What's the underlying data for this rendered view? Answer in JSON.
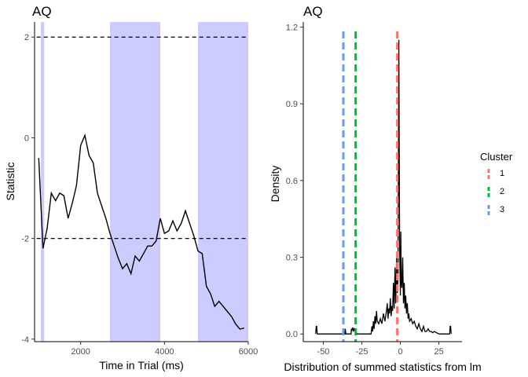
{
  "chart_data": [
    {
      "type": "line",
      "title": "AQ",
      "xlabel": "Time in Trial (ms)",
      "ylabel": "Statistic",
      "xlim": [
        900,
        6000
      ],
      "ylim": [
        -4.05,
        2.3
      ],
      "xticks": [
        2000,
        4000,
        6000
      ],
      "yticks": [
        2,
        0,
        -2,
        -4
      ],
      "grid": false,
      "threshold_lines": [
        2,
        -2
      ],
      "shaded_regions": [
        [
          1050,
          1130
        ],
        [
          2700,
          3900
        ],
        [
          4800,
          6000
        ]
      ],
      "colors": {
        "line": "#000000",
        "shade": "#ccccff",
        "threshold": "#000000"
      },
      "x": [
        1000,
        1100,
        1200,
        1300,
        1400,
        1500,
        1600,
        1700,
        1800,
        1900,
        2000,
        2100,
        2200,
        2300,
        2400,
        2500,
        2600,
        2700,
        2800,
        2900,
        3000,
        3100,
        3200,
        3300,
        3400,
        3500,
        3600,
        3700,
        3800,
        3900,
        4000,
        4100,
        4200,
        4300,
        4400,
        4500,
        4600,
        4700,
        4800,
        4900,
        5000,
        5100,
        5200,
        5300,
        5400,
        5500,
        5600,
        5700,
        5800,
        5900
      ],
      "y": [
        -0.4,
        -2.2,
        -1.8,
        -1.1,
        -1.25,
        -1.1,
        -1.15,
        -1.6,
        -1.3,
        -0.95,
        -0.15,
        0.05,
        -0.35,
        -0.5,
        -1.1,
        -1.35,
        -1.6,
        -1.9,
        -2.15,
        -2.4,
        -2.6,
        -2.5,
        -2.7,
        -2.35,
        -2.45,
        -2.3,
        -2.15,
        -2.15,
        -2.05,
        -1.6,
        -1.9,
        -1.85,
        -1.65,
        -1.85,
        -1.7,
        -1.45,
        -1.7,
        -1.95,
        -2.25,
        -2.3,
        -2.95,
        -3.1,
        -3.35,
        -3.25,
        -3.35,
        -3.45,
        -3.55,
        -3.7,
        -3.8,
        -3.78
      ]
    },
    {
      "type": "density",
      "title": "AQ",
      "xlabel": "Distribution of summed statistics from lm",
      "ylabel": "Density",
      "xlim": [
        -63,
        40
      ],
      "ylim": [
        -0.03,
        1.22
      ],
      "xticks": [
        -50,
        -25,
        0,
        25
      ],
      "yticks": [
        0.0,
        0.3,
        0.6,
        0.9,
        1.2
      ],
      "ytick_labels": [
        "0.0",
        "0.3",
        "0.6",
        "0.9",
        "1.2"
      ],
      "grid": false,
      "density": {
        "x": [
          -55,
          -54.6,
          -54.3,
          -54,
          -50,
          -40,
          -36,
          -35.7,
          -35.4,
          -32,
          -31.8,
          -31.5,
          -31,
          -30.5,
          -30,
          -29.7,
          -28,
          -25,
          -22,
          -20,
          -19,
          -18.5,
          -18,
          -17.5,
          -17,
          -16.5,
          -16,
          -15.5,
          -15,
          -14,
          -13,
          -12,
          -11,
          -10,
          -9,
          -8.5,
          -8,
          -7.5,
          -7,
          -6.5,
          -6,
          -5.5,
          -5,
          -4.5,
          -4,
          -3.5,
          -3,
          -2.5,
          -2,
          -1.5,
          -1,
          -0.5,
          0,
          0.3,
          0.6,
          1,
          1.5,
          2,
          2.5,
          3,
          3.5,
          4,
          4.5,
          5,
          5.5,
          6,
          7,
          8,
          9,
          10,
          11,
          12,
          13,
          14,
          15,
          16,
          17,
          18,
          19,
          20,
          21,
          22,
          25,
          30,
          32,
          32.3,
          32.6,
          33
        ],
        "y": [
          0,
          0.03,
          0.03,
          0,
          0,
          0,
          0,
          0.02,
          0,
          0,
          0.02,
          0.015,
          0.025,
          0.01,
          0.02,
          0.015,
          0,
          0,
          0,
          0,
          0,
          0.03,
          0.01,
          0.05,
          0.02,
          0.07,
          0.04,
          0.09,
          0.05,
          0.04,
          0.06,
          0.04,
          0.08,
          0.05,
          0.09,
          0.12,
          0.06,
          0.1,
          0.08,
          0.14,
          0.07,
          0.11,
          0.09,
          0.2,
          0.1,
          0.26,
          0.12,
          0.3,
          0.16,
          0.22,
          1.15,
          0.35,
          0.15,
          0.4,
          0.2,
          0.18,
          0.3,
          0.12,
          0.2,
          0.1,
          0.15,
          0.08,
          0.12,
          0.06,
          0.08,
          0.05,
          0.06,
          0.04,
          0.05,
          0.03,
          0.02,
          0.04,
          0.02,
          0.01,
          0.03,
          0.01,
          0.01,
          0.02,
          0.01,
          0.01,
          0.005,
          0.01,
          0,
          0,
          0,
          0.03,
          0.03,
          0
        ],
        "color": "#000000"
      },
      "series": [
        {
          "name": "1",
          "value": -2,
          "color": "#F8766D"
        },
        {
          "name": "2",
          "value": -29,
          "color": "#00BA38"
        },
        {
          "name": "3",
          "value": -37,
          "color": "#619CFF"
        }
      ],
      "legend": {
        "title": "Cluster",
        "position": "right"
      }
    }
  ]
}
